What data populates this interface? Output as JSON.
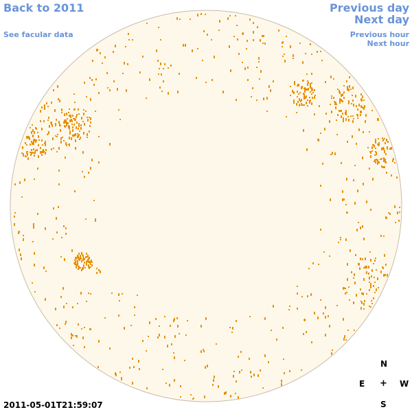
{
  "nav": {
    "back_label": "Back to 2011",
    "facular_label": "See facular data",
    "previous_day_label": "Previous day",
    "next_day_label": "Next day",
    "previous_hour_label": "Previous hour",
    "next_hour_label": "Next hour"
  },
  "timestamp": "2011-05-01T21:59:07",
  "compass": {
    "north": "N",
    "south": "S",
    "east": "E",
    "west": "W",
    "center": "+"
  },
  "colors": {
    "disk_fill": "#fdf8ea",
    "disk_border": "#c8bca8",
    "feature": "#e8900a",
    "link": "#6a94d8"
  }
}
